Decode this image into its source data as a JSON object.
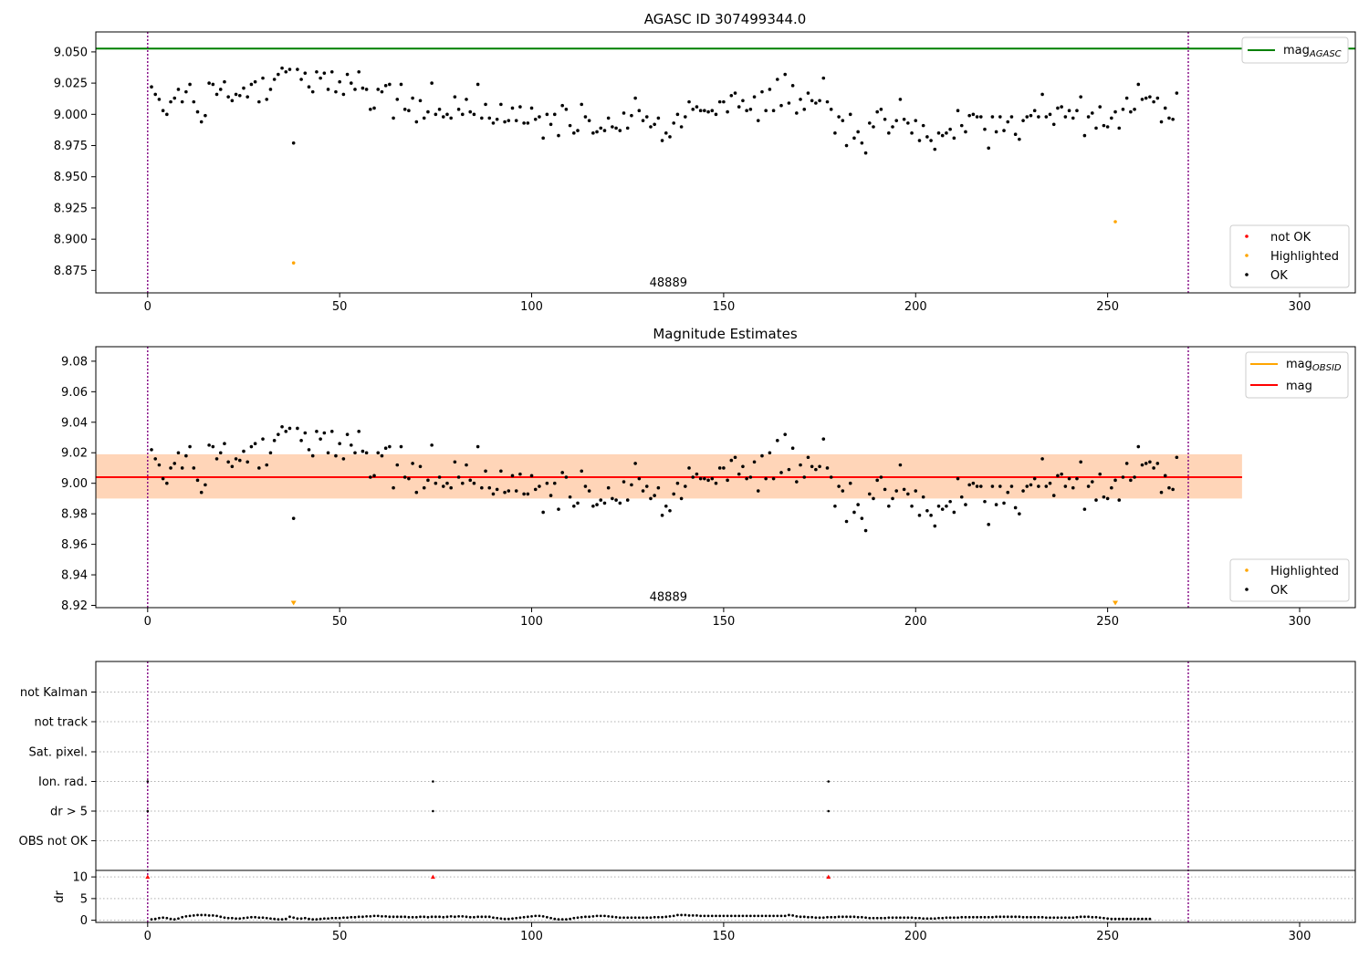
{
  "chart_data": [
    {
      "type": "scatter",
      "title": "AGASC ID 307499344.0",
      "xlim": [
        -13.5,
        314.5
      ],
      "ylim": [
        8.857,
        9.066
      ],
      "xticks": [
        0,
        50,
        100,
        150,
        200,
        250,
        300
      ],
      "yticks": [
        8.875,
        8.9,
        8.925,
        8.95,
        8.975,
        9.0,
        9.025,
        9.05
      ],
      "ytick_labels": [
        "8.875",
        "8.900",
        "8.925",
        "8.950",
        "8.975",
        "9.000",
        "9.025",
        "9.050"
      ],
      "vlines": [
        0,
        271
      ],
      "hline": {
        "label": "mag",
        "label_sub": "AGASC",
        "value": 9.0527,
        "color": "#008000"
      },
      "annotation": {
        "text": "48889",
        "x": 135.6,
        "y": 8.862
      },
      "legend_lines": [
        {
          "label": "mag",
          "label_sub": "AGASC",
          "color": "#008000"
        }
      ],
      "legend_markers": [
        {
          "label": "not OK",
          "color": "#ff0000"
        },
        {
          "label": "Highlighted",
          "color": "#ffa500"
        },
        {
          "label": "OK",
          "color": "#000000"
        }
      ],
      "highlighted": [
        {
          "x": 38,
          "y": 8.881
        },
        {
          "x": 252,
          "y": 8.914
        }
      ],
      "series": [
        {
          "color": "#000000",
          "x_start": 1,
          "values": [
            9.022,
            9.016,
            9.012,
            9.003,
            9.0,
            9.01,
            9.013,
            9.02,
            9.01,
            9.018,
            9.024,
            9.01,
            9.002,
            8.994,
            8.999,
            9.025,
            9.024,
            9.016,
            9.02,
            9.026,
            9.014,
            9.011,
            9.016,
            9.015,
            9.021,
            9.014,
            9.024,
            9.026,
            9.01,
            9.029,
            9.012,
            9.02,
            9.028,
            9.032,
            9.037,
            9.034,
            9.036,
            8.977,
            9.036,
            9.028,
            9.033,
            9.022,
            9.018,
            9.034,
            9.029,
            9.033,
            9.02,
            9.034,
            9.018,
            9.026,
            9.016,
            9.032,
            9.025,
            9.02,
            9.034,
            9.021,
            9.02,
            9.004,
            9.005,
            9.02,
            9.018,
            9.023,
            9.024,
            8.997,
            9.012,
            9.024,
            9.004,
            9.003,
            9.013,
            8.994,
            9.011,
            8.997,
            9.002,
            9.025,
            9.0,
            9.004,
            8.998,
            9.0,
            8.997,
            9.014,
            9.004,
            9.0,
            9.012,
            9.002,
            9.0,
            9.024,
            8.997,
            9.008,
            8.997,
            8.993,
            8.996,
            9.008,
            8.994,
            8.995,
            9.005,
            8.995,
            9.006,
            8.993,
            8.993,
            9.005,
            8.996,
            8.998,
            8.981,
            9.0,
            8.992,
            9.0,
            8.983,
            9.007,
            9.004,
            8.991,
            8.985,
            8.987,
            9.008,
            8.998,
            8.995,
            8.985,
            8.986,
            8.989,
            8.987,
            8.997,
            8.99,
            8.989,
            8.987,
            9.001,
            8.989,
            8.999,
            9.013,
            9.003,
            8.995,
            8.998,
            8.99,
            8.992,
            8.997,
            8.979,
            8.985,
            8.982,
            8.993,
            9.0,
            8.99,
            8.998,
            9.01,
            9.004,
            9.006,
            9.003,
            9.003,
            9.002,
            9.003,
            9.0,
            9.01,
            9.01,
            9.002,
            9.015,
            9.017,
            9.006,
            9.011,
            9.003,
            9.004,
            9.014,
            8.995,
            9.018,
            9.003,
            9.02,
            9.003,
            9.028,
            9.007,
            9.032,
            9.009,
            9.023,
            9.001,
            9.012,
            9.004,
            9.017,
            9.011,
            9.009,
            9.011,
            9.029,
            9.01,
            9.004,
            8.985,
            8.998,
            8.995,
            8.975,
            9.0,
            8.981,
            8.986,
            8.977,
            8.969,
            8.993,
            8.99,
            9.002,
            9.004,
            8.996,
            8.985,
            8.99,
            8.995,
            9.012,
            8.996,
            8.993,
            8.985,
            8.995,
            8.979,
            8.991,
            8.982,
            8.979,
            8.972,
            8.985,
            8.983,
            8.985,
            8.988,
            8.981,
            9.003,
            8.991,
            8.986,
            8.999,
            9.0,
            8.998,
            8.998,
            8.988,
            8.973,
            8.998,
            8.986,
            8.998,
            8.987,
            8.994,
            8.998,
            8.984,
            8.98,
            8.995,
            8.998,
            8.999,
            9.003,
            8.998,
            9.016,
            8.998,
            9.0,
            8.992,
            9.005,
            9.006,
            8.998,
            9.003,
            8.997,
            9.003,
            9.014,
            8.983,
            8.998,
            9.001,
            8.989,
            9.006,
            8.991,
            8.99,
            8.997,
            9.002,
            8.989,
            9.004,
            9.013,
            9.002,
            9.004,
            9.024,
            9.012,
            9.013,
            9.014,
            9.01,
            9.013,
            8.994,
            9.005,
            8.997,
            8.996,
            9.017
          ]
        }
      ]
    },
    {
      "type": "scatter",
      "title": "Magnitude Estimates",
      "xlim": [
        -13.5,
        314.5
      ],
      "ylim": [
        8.9185,
        9.0895
      ],
      "xticks": [
        0,
        50,
        100,
        150,
        200,
        250,
        300
      ],
      "yticks": [
        8.92,
        8.94,
        8.96,
        8.98,
        9.0,
        9.02,
        9.04,
        9.06,
        9.08
      ],
      "ytick_labels": [
        "8.92",
        "8.94",
        "8.96",
        "8.98",
        "9.00",
        "9.02",
        "9.04",
        "9.06",
        "9.08"
      ],
      "vlines": [
        0,
        271
      ],
      "mag_line": {
        "label": "mag",
        "value": 9.004,
        "color": "#ff0000"
      },
      "mag_obsid_line": {
        "label": "mag",
        "label_sub": "OBSID",
        "value": 9.004,
        "color": "#ffa500"
      },
      "band_pink": [
        8.99,
        9.019
      ],
      "band_orange": [
        8.99,
        9.019
      ],
      "band_x": [
        -13.5,
        285
      ],
      "annotation": {
        "text": "48889",
        "x": 135.6,
        "y": 8.923
      },
      "legend_lines": [
        {
          "label": "mag",
          "label_sub": "OBSID",
          "color": "#ffa500"
        },
        {
          "label": "mag",
          "label_sub": "",
          "color": "#ff0000"
        }
      ],
      "legend_markers": [
        {
          "label": "Highlighted",
          "color": "#ffa500"
        },
        {
          "label": "OK",
          "color": "#000000"
        }
      ],
      "highlighted_offscale": [
        {
          "x": 38,
          "y": 8.92
        },
        {
          "x": 252,
          "y": 8.92
        }
      ]
    },
    {
      "type": "scatter",
      "title": "",
      "xlim": [
        -13.5,
        314.5
      ],
      "xticks": [
        0,
        50,
        100,
        150,
        200,
        250,
        300
      ],
      "flag_labels": [
        "OBS not OK",
        "dr > 5",
        "Ion. rad.",
        "Sat. pixel.",
        "not track",
        "not Kalman"
      ],
      "flag_points": [
        {
          "flag": "Ion. rad.",
          "x": [
            0,
            74.3,
            177.3
          ]
        },
        {
          "flag": "dr > 5",
          "x": [
            0,
            74.3,
            177.3
          ]
        }
      ],
      "vlines": [
        0,
        271
      ],
      "dr": {
        "ylabel": "dr",
        "ylim": [
          -0.5,
          11.5
        ],
        "yticks": [
          0,
          5,
          10
        ],
        "highlight_points": [
          {
            "x": 0,
            "y": 10
          },
          {
            "x": 74.3,
            "y": 10
          },
          {
            "x": 177.3,
            "y": 10
          }
        ],
        "x_start": 1,
        "values": [
          0.2,
          0.3,
          0.5,
          0.6,
          0.5,
          0.3,
          0.2,
          0.4,
          0.7,
          0.9,
          1.0,
          1.1,
          1.2,
          1.2,
          1.2,
          1.1,
          1.1,
          1.0,
          0.8,
          0.6,
          0.5,
          0.5,
          0.4,
          0.4,
          0.5,
          0.6,
          0.7,
          0.7,
          0.6,
          0.6,
          0.5,
          0.4,
          0.3,
          0.2,
          0.2,
          0.3,
          0.8,
          0.6,
          0.4,
          0.4,
          0.5,
          0.3,
          0.2,
          0.2,
          0.3,
          0.4,
          0.4,
          0.5,
          0.5,
          0.5,
          0.6,
          0.6,
          0.7,
          0.7,
          0.8,
          0.8,
          0.9,
          0.9,
          1.0,
          1.0,
          0.9,
          0.9,
          0.8,
          0.8,
          0.8,
          0.8,
          0.8,
          0.7,
          0.7,
          0.7,
          0.8,
          0.8,
          0.7,
          0.8,
          0.8,
          0.8,
          0.7,
          0.8,
          0.9,
          0.8,
          0.9,
          0.9,
          0.8,
          0.7,
          0.7,
          0.8,
          0.8,
          0.8,
          0.8,
          0.6,
          0.5,
          0.4,
          0.3,
          0.3,
          0.4,
          0.5,
          0.6,
          0.7,
          0.8,
          0.9,
          1.0,
          1.0,
          0.9,
          0.7,
          0.5,
          0.3,
          0.2,
          0.2,
          0.2,
          0.3,
          0.5,
          0.6,
          0.7,
          0.8,
          0.8,
          0.9,
          1.0,
          1.0,
          1.0,
          0.9,
          0.8,
          0.7,
          0.6,
          0.6,
          0.6,
          0.6,
          0.6,
          0.6,
          0.6,
          0.6,
          0.6,
          0.7,
          0.7,
          0.7,
          0.8,
          0.9,
          1.0,
          1.2,
          1.2,
          1.2,
          1.1,
          1.1,
          1.1,
          1.0,
          1.0,
          1.0,
          1.0,
          1.0,
          1.0,
          1.0,
          1.0,
          1.0,
          1.0,
          1.0,
          1.0,
          1.0,
          1.0,
          1.0,
          1.0,
          1.0,
          1.0,
          1.0,
          1.0,
          1.0,
          1.0,
          1.0,
          1.2,
          1.1,
          0.9,
          0.8,
          0.8,
          0.7,
          0.7,
          0.6,
          0.6,
          0.6,
          0.7,
          0.7,
          0.7,
          0.8,
          0.8,
          0.8,
          0.8,
          0.8,
          0.7,
          0.7,
          0.6,
          0.5,
          0.5,
          0.5,
          0.5,
          0.5,
          0.6,
          0.6,
          0.6,
          0.6,
          0.6,
          0.6,
          0.6,
          0.5,
          0.5,
          0.4,
          0.4,
          0.4,
          0.4,
          0.5,
          0.5,
          0.6,
          0.6,
          0.6,
          0.6,
          0.7,
          0.7,
          0.7,
          0.7,
          0.7,
          0.7,
          0.7,
          0.7,
          0.7,
          0.8,
          0.8,
          0.8,
          0.8,
          0.8,
          0.8,
          0.8,
          0.7,
          0.7,
          0.7,
          0.7,
          0.7,
          0.7,
          0.6,
          0.6,
          0.6,
          0.6,
          0.6,
          0.6,
          0.6,
          0.6,
          0.7,
          0.8,
          0.8,
          0.8,
          0.7,
          0.7,
          0.6,
          0.5,
          0.4,
          0.3,
          0.3,
          0.3,
          0.3,
          0.3,
          0.3,
          0.3,
          0.3,
          0.3,
          0.3,
          0.3
        ]
      }
    }
  ]
}
